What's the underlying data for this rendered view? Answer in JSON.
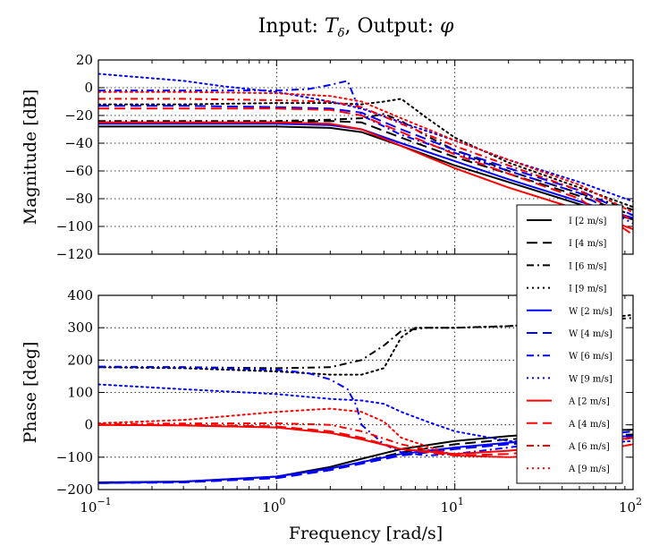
{
  "title": {
    "prefix": "Input: ",
    "input_sym": "T",
    "input_sub": "δ",
    "mid": ", Output: ",
    "output_sym": "φ"
  },
  "xlabel": "Frequency [rad/s]",
  "xticks": [
    {
      "base": "10",
      "exp": "−1",
      "v": 0.1
    },
    {
      "base": "10",
      "exp": "0",
      "v": 1
    },
    {
      "base": "10",
      "exp": "1",
      "v": 10
    },
    {
      "base": "10",
      "exp": "2",
      "v": 100
    }
  ],
  "colors": {
    "I": "#000000",
    "W": "#0000ff",
    "A": "#ff0000"
  },
  "chart_data": [
    {
      "type": "line",
      "xscale": "log",
      "xlim": [
        0.1,
        100
      ],
      "ylim": [
        -120,
        20
      ],
      "ylabel": "Magnitude [dB]",
      "yticks": [
        20,
        0,
        -20,
        -40,
        -60,
        -80,
        -100,
        -120
      ],
      "ytick_labels": [
        "20",
        "0",
        "−20",
        "−40",
        "−60",
        "−80",
        "−100",
        "−120"
      ],
      "grid": true,
      "series": [
        {
          "name": "I [2 m/s]",
          "color": "#000000",
          "style": "solid",
          "x": [
            0.1,
            0.3,
            1,
            2,
            3,
            5,
            10,
            20,
            50,
            100
          ],
          "y": [
            -28,
            -28,
            -28,
            -29,
            -32,
            -42,
            -56,
            -68,
            -84,
            -95
          ]
        },
        {
          "name": "I [4 m/s]",
          "color": "#000000",
          "style": "dashed",
          "x": [
            0.1,
            0.3,
            1,
            2,
            3,
            5,
            10,
            20,
            50,
            100
          ],
          "y": [
            -25,
            -25,
            -25,
            -24,
            -25,
            -36,
            -50,
            -62,
            -78,
            -92
          ]
        },
        {
          "name": "I [6 m/s]",
          "color": "#000000",
          "style": "dashdot",
          "x": [
            0.1,
            0.3,
            1,
            2,
            3,
            4,
            5,
            7,
            10,
            20,
            50,
            100
          ],
          "y": [
            -24,
            -24,
            -24,
            -23,
            -22,
            -19,
            -24,
            -35,
            -45,
            -60,
            -76,
            -88
          ]
        },
        {
          "name": "I [9 m/s]",
          "color": "#000000",
          "style": "dotted",
          "x": [
            0.1,
            0.3,
            1,
            2,
            3,
            4,
            5,
            7,
            10,
            20,
            50,
            100
          ],
          "y": [
            -12,
            -12,
            -11,
            -11,
            -12,
            -10,
            -8,
            -22,
            -36,
            -54,
            -72,
            -86
          ]
        },
        {
          "name": "W [2 m/s]",
          "color": "#0000ff",
          "style": "solid",
          "x": [
            0.1,
            0.3,
            1,
            2,
            3,
            5,
            10,
            20,
            50,
            100
          ],
          "y": [
            -26,
            -26,
            -26,
            -27,
            -30,
            -40,
            -53,
            -66,
            -82,
            -94
          ]
        },
        {
          "name": "W [4 m/s]",
          "color": "#0000ff",
          "style": "dashed",
          "x": [
            0.1,
            0.3,
            1,
            2,
            3,
            5,
            10,
            20,
            50,
            100
          ],
          "y": [
            -13,
            -13,
            -14,
            -15,
            -18,
            -30,
            -45,
            -58,
            -74,
            -92
          ]
        },
        {
          "name": "W [6 m/s]",
          "color": "#0000ff",
          "style": "dashdot",
          "x": [
            0.1,
            0.3,
            1,
            1.5,
            2,
            2.5,
            3,
            5,
            10,
            20,
            50,
            100
          ],
          "y": [
            -2,
            -2,
            -2,
            -1,
            2,
            5,
            -20,
            -34,
            -47,
            -60,
            -76,
            -98
          ]
        },
        {
          "name": "W [9 m/s]",
          "color": "#0000ff",
          "style": "dotted",
          "x": [
            0.1,
            0.3,
            0.5,
            1,
            2,
            3,
            5,
            10,
            20,
            50,
            100
          ],
          "y": [
            10,
            5,
            1,
            -3,
            -10,
            -15,
            -25,
            -38,
            -52,
            -68,
            -82
          ]
        },
        {
          "name": "A [2 m/s]",
          "color": "#ff0000",
          "style": "solid",
          "x": [
            0.1,
            0.3,
            1,
            2,
            3,
            5,
            10,
            20,
            50,
            100
          ],
          "y": [
            -25,
            -25,
            -25,
            -26,
            -30,
            -42,
            -58,
            -72,
            -88,
            -102
          ]
        },
        {
          "name": "A [4 m/s]",
          "color": "#ff0000",
          "style": "dashed",
          "x": [
            0.1,
            0.3,
            1,
            2,
            3,
            5,
            10,
            20,
            50,
            100
          ],
          "y": [
            -15,
            -15,
            -15,
            -16,
            -20,
            -32,
            -48,
            -62,
            -80,
            -106
          ]
        },
        {
          "name": "A [6 m/s]",
          "color": "#ff0000",
          "style": "dashdot",
          "x": [
            0.1,
            0.3,
            1,
            2,
            3,
            5,
            10,
            20,
            50,
            100
          ],
          "y": [
            -8,
            -8,
            -9,
            -10,
            -14,
            -26,
            -42,
            -56,
            -74,
            -96
          ]
        },
        {
          "name": "A [9 m/s]",
          "color": "#ff0000",
          "style": "dotted",
          "x": [
            0.1,
            0.3,
            1,
            2,
            3,
            5,
            10,
            20,
            50,
            100
          ],
          "y": [
            -3,
            -3,
            -4,
            -6,
            -10,
            -22,
            -38,
            -52,
            -70,
            -90
          ]
        }
      ]
    },
    {
      "type": "line",
      "xscale": "log",
      "xlim": [
        0.1,
        100
      ],
      "ylim": [
        -200,
        400
      ],
      "ylabel": "Phase [deg]",
      "yticks": [
        400,
        300,
        200,
        100,
        0,
        -100,
        -200
      ],
      "ytick_labels": [
        "400",
        "300",
        "200",
        "100",
        "0",
        "−100",
        "−200"
      ],
      "grid": true,
      "series": [
        {
          "name": "I [2 m/s]",
          "color": "#000000",
          "style": "solid",
          "x": [
            0.1,
            0.3,
            1,
            2,
            3,
            5,
            10,
            20,
            50,
            100
          ],
          "y": [
            -178,
            -175,
            -160,
            -130,
            -105,
            -75,
            -50,
            -35,
            -20,
            -15
          ]
        },
        {
          "name": "I [4 m/s]",
          "color": "#000000",
          "style": "dashed",
          "x": [
            0.1,
            0.3,
            1,
            2,
            3,
            5,
            10,
            20,
            50,
            100
          ],
          "y": [
            -178,
            -177,
            -162,
            -140,
            -115,
            -85,
            -60,
            -45,
            -35,
            -30
          ]
        },
        {
          "name": "I [6 m/s]",
          "color": "#000000",
          "style": "dashdot",
          "x": [
            0.1,
            0.3,
            1,
            2,
            3,
            4,
            5,
            7,
            10,
            20,
            50,
            100
          ],
          "y": [
            178,
            178,
            175,
            178,
            200,
            245,
            290,
            300,
            300,
            305,
            320,
            330
          ]
        },
        {
          "name": "I [9 m/s]",
          "color": "#000000",
          "style": "dotted",
          "x": [
            0.1,
            0.3,
            1,
            2,
            3,
            4,
            5,
            6,
            7,
            10,
            20,
            50,
            100
          ],
          "y": [
            178,
            175,
            165,
            155,
            155,
            175,
            270,
            300,
            300,
            300,
            305,
            320,
            340
          ]
        },
        {
          "name": "W [2 m/s]",
          "color": "#0000ff",
          "style": "solid",
          "x": [
            0.1,
            0.3,
            1,
            2,
            3,
            5,
            10,
            20,
            50,
            100
          ],
          "y": [
            -180,
            -176,
            -160,
            -135,
            -115,
            -90,
            -70,
            -55,
            -40,
            -35
          ]
        },
        {
          "name": "W [4 m/s]",
          "color": "#0000ff",
          "style": "dashed",
          "x": [
            0.1,
            0.3,
            1,
            2,
            3,
            5,
            10,
            20,
            50,
            100
          ],
          "y": [
            -180,
            -178,
            -165,
            -140,
            -120,
            -95,
            -75,
            -60,
            -45,
            -40
          ]
        },
        {
          "name": "W [6 m/s]",
          "color": "#0000ff",
          "style": "dashdot",
          "x": [
            0.1,
            0.3,
            1,
            1.5,
            2,
            2.5,
            2.8,
            3,
            4,
            5,
            7,
            10,
            20,
            50,
            100
          ],
          "y": [
            180,
            178,
            170,
            160,
            140,
            110,
            60,
            0,
            -60,
            -85,
            -95,
            -90,
            -70,
            -40,
            -20
          ]
        },
        {
          "name": "W [9 m/s]",
          "color": "#0000ff",
          "style": "dotted",
          "x": [
            0.1,
            0.3,
            1,
            2,
            3,
            4,
            5,
            7,
            10,
            20,
            50,
            100
          ],
          "y": [
            125,
            110,
            95,
            80,
            75,
            65,
            40,
            10,
            -20,
            -50,
            -60,
            -50
          ]
        },
        {
          "name": "A [2 m/s]",
          "color": "#ff0000",
          "style": "solid",
          "x": [
            0.1,
            0.3,
            1,
            2,
            3,
            5,
            10,
            20,
            50,
            100
          ],
          "y": [
            0,
            -2,
            -8,
            -25,
            -45,
            -75,
            -90,
            -80,
            -60,
            -40
          ]
        },
        {
          "name": "A [4 m/s]",
          "color": "#ff0000",
          "style": "dashed",
          "x": [
            0.1,
            0.3,
            1,
            2,
            3,
            5,
            10,
            20,
            50,
            100
          ],
          "y": [
            0,
            0,
            -5,
            -20,
            -40,
            -75,
            -95,
            -90,
            -70,
            -40
          ]
        },
        {
          "name": "A [6 m/s]",
          "color": "#ff0000",
          "style": "dashdot",
          "x": [
            0.1,
            0.3,
            1,
            2,
            3,
            5,
            10,
            20,
            50,
            100
          ],
          "y": [
            2,
            4,
            5,
            0,
            -20,
            -60,
            -95,
            -100,
            -90,
            -60
          ]
        },
        {
          "name": "A [9 m/s]",
          "color": "#ff0000",
          "style": "dotted",
          "x": [
            0.1,
            0.3,
            1,
            2,
            3,
            4,
            5,
            10,
            20,
            50,
            100
          ],
          "y": [
            5,
            15,
            40,
            50,
            40,
            10,
            -40,
            -95,
            -100,
            -90,
            -60
          ]
        }
      ]
    }
  ]
}
